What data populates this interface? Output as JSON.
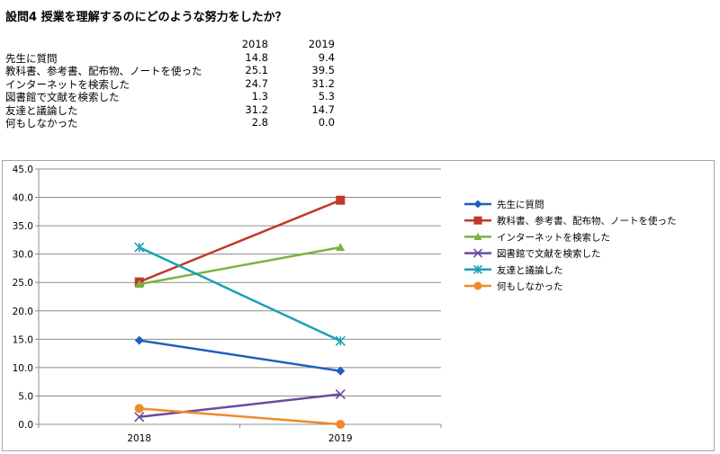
{
  "title": "設問4  授業を理解するのにどのような努力をしたか？",
  "table": {
    "headers": [
      "2018",
      "2019"
    ],
    "rows": [
      {
        "label": "先生に質問",
        "v2018": "14.8",
        "v2019": "9.4"
      },
      {
        "label": "教科書、参考書、配布物、ノートを使った",
        "v2018": "25.1",
        "v2019": "39.5"
      },
      {
        "label": "インターネットを検索した",
        "v2018": "24.7",
        "v2019": "31.2"
      },
      {
        "label": "図書館で文献を検索した",
        "v2018": "1.3",
        "v2019": "5.3"
      },
      {
        "label": "友達と議論した",
        "v2018": "31.2",
        "v2019": "14.7"
      },
      {
        "label": "何もしなかった",
        "v2018": "2.8",
        "v2019": "0.0"
      }
    ]
  },
  "chart_data": {
    "type": "line",
    "x": [
      "2018",
      "2019"
    ],
    "ylim": [
      0,
      45
    ],
    "yticks": [
      "0.0",
      "5.0",
      "10.0",
      "15.0",
      "20.0",
      "25.0",
      "30.0",
      "35.0",
      "40.0",
      "45.0"
    ],
    "grid": true,
    "legend_position": "right",
    "series": [
      {
        "name": "先生に質問",
        "values": [
          14.8,
          9.4
        ],
        "color": "#1f5fbf",
        "marker": "diamond"
      },
      {
        "name": "教科書、参考書、配布物、ノートを使った",
        "values": [
          25.1,
          39.5
        ],
        "color": "#c0392b",
        "marker": "square"
      },
      {
        "name": "インターネットを検索した",
        "values": [
          24.7,
          31.2
        ],
        "color": "#7cb342",
        "marker": "triangle"
      },
      {
        "name": "図書館で文献を検索した",
        "values": [
          1.3,
          5.3
        ],
        "color": "#6a4c9c",
        "marker": "x"
      },
      {
        "name": "友達と議論した",
        "values": [
          31.2,
          14.7
        ],
        "color": "#1ba1b5",
        "marker": "star"
      },
      {
        "name": "何もしなかった",
        "values": [
          2.8,
          0.0
        ],
        "color": "#f0892b",
        "marker": "circle"
      }
    ]
  }
}
